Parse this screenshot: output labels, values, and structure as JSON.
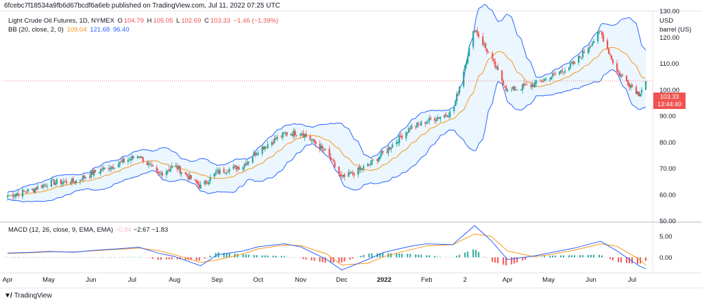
{
  "header": {
    "text": "6fcebc7f18534a9fb6d67bcdf6a6eb published on TradingView.com, Jul 11, 2022 07:25 UTC"
  },
  "legend": {
    "instrument": "Light Crude Oil Futures, 1D, NYMEX",
    "o_label": "O",
    "o_value": "104.79",
    "h_label": "H",
    "h_value": "105.05",
    "l_label": "L",
    "l_value": "102.69",
    "c_label": "C",
    "c_value": "103.33",
    "change": "−1.46 (−1.39%)",
    "bb_label": "BB (20, close, 2, 0)",
    "bb_basis": "109.04",
    "bb_upper": "121.68",
    "bb_lower": "96.40"
  },
  "macd_legend": {
    "label": "MACD (12, 26, close, 9, EMA, EMA)",
    "hist": "−0.84",
    "macd": "−2.67",
    "signal": "−1.83"
  },
  "unit": {
    "line1": "USD",
    "line2": "barrel (US)"
  },
  "last_price": {
    "price": "103.33",
    "countdown": "13:44:40"
  },
  "footer": {
    "brand": "TradingView"
  },
  "colors": {
    "up": "#26a69a",
    "down": "#ef5350",
    "basis": "#f7931a",
    "band": "#2962ff",
    "fill": "#e3f2fd"
  },
  "chart_data": [
    {
      "type": "candlestick",
      "title": "Light Crude Oil Futures, 1D, NYMEX",
      "ylabel": "USD barrel (US)",
      "ylim": [
        50,
        130
      ],
      "y_ticks": [
        "130.00",
        "120.00",
        "110.00",
        "100.00",
        "90.00",
        "80.00",
        "70.00",
        "60.00",
        "50.00"
      ],
      "x_ticks": [
        "Apr",
        "May",
        "Jun",
        "Jul",
        "Aug",
        "Sep",
        "Oct",
        "Nov",
        "Dec",
        "2022",
        "Feb",
        "2",
        "Apr",
        "May",
        "Jun",
        "Jul"
      ],
      "close_by_month": [
        {
          "date": "2021-04-01",
          "close": 59.5
        },
        {
          "date": "2021-04-20",
          "close": 62.0
        },
        {
          "date": "2021-05-01",
          "close": 64.5
        },
        {
          "date": "2021-05-20",
          "close": 65.0
        },
        {
          "date": "2021-06-01",
          "close": 68.0
        },
        {
          "date": "2021-06-20",
          "close": 71.5
        },
        {
          "date": "2021-07-06",
          "close": 75.0
        },
        {
          "date": "2021-07-20",
          "close": 67.5
        },
        {
          "date": "2021-08-01",
          "close": 71.0
        },
        {
          "date": "2021-08-20",
          "close": 63.0
        },
        {
          "date": "2021-09-01",
          "close": 68.5
        },
        {
          "date": "2021-09-20",
          "close": 71.0
        },
        {
          "date": "2021-10-01",
          "close": 77.0
        },
        {
          "date": "2021-10-20",
          "close": 83.0
        },
        {
          "date": "2021-11-01",
          "close": 84.0
        },
        {
          "date": "2021-11-20",
          "close": 76.0
        },
        {
          "date": "2021-12-01",
          "close": 66.0
        },
        {
          "date": "2021-12-20",
          "close": 71.0
        },
        {
          "date": "2022-01-01",
          "close": 76.0
        },
        {
          "date": "2022-01-20",
          "close": 85.5
        },
        {
          "date": "2022-02-01",
          "close": 88.0
        },
        {
          "date": "2022-02-20",
          "close": 91.5
        },
        {
          "date": "2022-03-08",
          "close": 123.5
        },
        {
          "date": "2022-03-20",
          "close": 112.0
        },
        {
          "date": "2022-04-01",
          "close": 99.5
        },
        {
          "date": "2022-04-20",
          "close": 102.0
        },
        {
          "date": "2022-05-01",
          "close": 104.5
        },
        {
          "date": "2022-05-20",
          "close": 110.0
        },
        {
          "date": "2022-06-08",
          "close": 122.0
        },
        {
          "date": "2022-06-20",
          "close": 107.0
        },
        {
          "date": "2022-07-06",
          "close": 98.5
        },
        {
          "date": "2022-07-11",
          "close": 103.33
        }
      ],
      "bollinger": {
        "basis_last": 109.04,
        "upper_last": 121.68,
        "lower_last": 96.4
      }
    },
    {
      "type": "line",
      "title": "MACD (12, 26, close, 9, EMA, EMA)",
      "y_ticks": [
        "5.00",
        "0.00"
      ],
      "ylim": [
        -3.5,
        8
      ],
      "macd_by_month": [
        1.0,
        1.2,
        1.4,
        1.2,
        1.6,
        2.0,
        2.4,
        1.0,
        0.2,
        -2.0,
        0.6,
        1.5,
        2.5,
        3.2,
        2.5,
        -0.5,
        -3.0,
        -0.5,
        1.2,
        2.6,
        3.2,
        3.0,
        7.5,
        4.0,
        -0.5,
        0.3,
        1.0,
        2.2,
        3.8,
        1.5,
        -2.0,
        -2.67
      ],
      "signal_by_month": [
        0.9,
        1.1,
        1.3,
        1.3,
        1.5,
        1.9,
        2.2,
        1.6,
        0.6,
        -1.2,
        -0.6,
        0.8,
        2.0,
        2.9,
        2.8,
        0.8,
        -1.8,
        -1.4,
        0.2,
        1.8,
        2.7,
        3.0,
        5.5,
        5.0,
        1.5,
        0.2,
        0.6,
        1.7,
        3.2,
        2.6,
        -0.4,
        -1.83
      ]
    }
  ]
}
